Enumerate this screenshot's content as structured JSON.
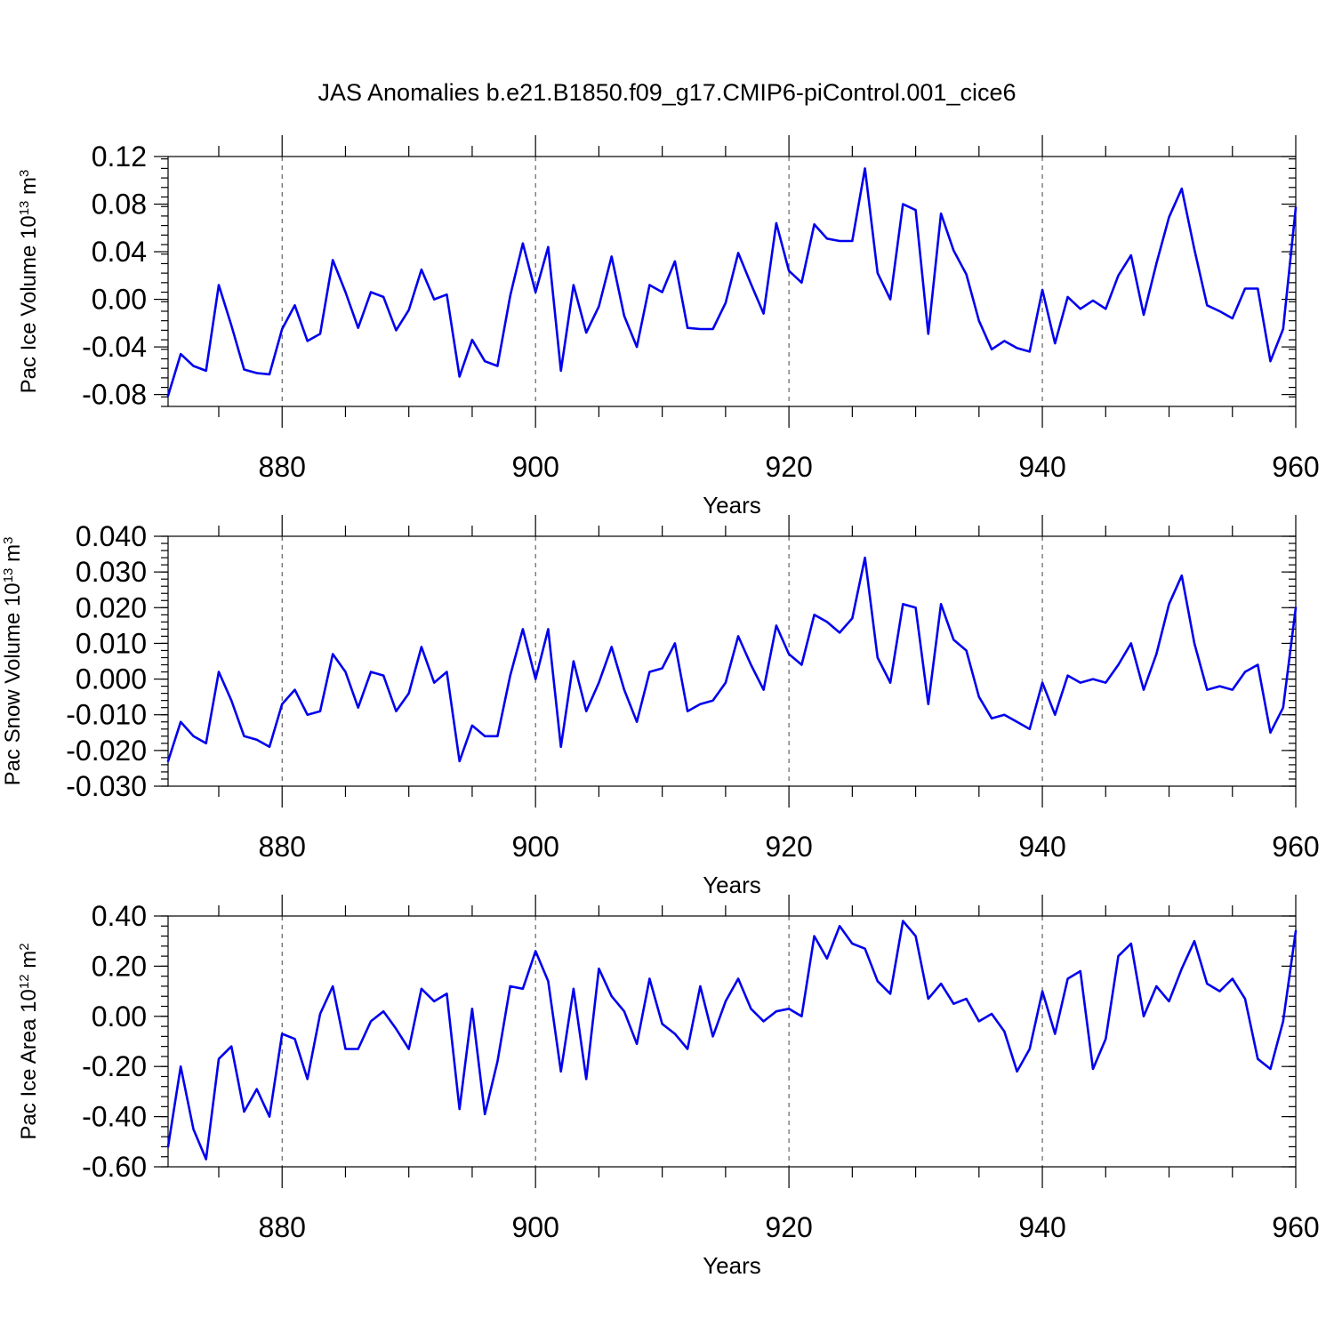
{
  "title": "JAS Anomalies b.e21.B1850.f09_g17.CMIP6-piControl.001_cice6",
  "colors": {
    "series": "#0000ee",
    "grid": "#444444",
    "axis": "#000000"
  },
  "chart_data": [
    {
      "type": "line",
      "xlabel": "Years",
      "ylabel": {
        "main": "Pac Ice Volume 10",
        "exp": "13",
        "unit": " m",
        "unit_exp": "3"
      },
      "xlim": [
        871,
        960
      ],
      "ylim": [
        -0.09,
        0.12
      ],
      "xticks": [
        880,
        900,
        920,
        940,
        960
      ],
      "xtick_labels": [
        "880",
        "900",
        "920",
        "940",
        "960"
      ],
      "yticks": [
        -0.08,
        -0.04,
        0.0,
        0.04,
        0.08,
        0.12
      ],
      "ytick_labels": [
        "-0.08",
        "-0.04",
        "0.00",
        "0.04",
        "0.08",
        "0.12"
      ],
      "x_start": 871,
      "values": [
        -0.081,
        -0.046,
        -0.056,
        -0.06,
        0.012,
        -0.022,
        -0.059,
        -0.062,
        -0.063,
        -0.025,
        -0.005,
        -0.035,
        -0.029,
        0.033,
        0.006,
        -0.024,
        0.006,
        0.002,
        -0.026,
        -0.009,
        0.025,
        0.0,
        0.004,
        -0.065,
        -0.034,
        -0.052,
        -0.056,
        0.003,
        0.047,
        0.006,
        0.044,
        -0.06,
        0.012,
        -0.028,
        -0.006,
        0.036,
        -0.014,
        -0.04,
        0.012,
        0.006,
        0.032,
        -0.024,
        -0.025,
        -0.025,
        -0.003,
        0.039,
        0.013,
        -0.012,
        0.064,
        0.024,
        0.014,
        0.063,
        0.051,
        0.049,
        0.049,
        0.11,
        0.022,
        0.0,
        0.08,
        0.075,
        -0.029,
        0.072,
        0.041,
        0.021,
        -0.018,
        -0.042,
        -0.035,
        -0.041,
        -0.044,
        0.008,
        -0.037,
        0.002,
        -0.008,
        -0.001,
        -0.008,
        0.02,
        0.037,
        -0.013,
        0.03,
        0.069,
        0.093,
        0.042,
        -0.005,
        -0.01,
        -0.016,
        0.009,
        0.009,
        -0.052,
        -0.025,
        0.077
      ]
    },
    {
      "type": "line",
      "xlabel": "Years",
      "ylabel": {
        "main": "Pac Snow Volume 10",
        "exp": "13",
        "unit": " m",
        "unit_exp": "3"
      },
      "xlim": [
        871,
        960
      ],
      "ylim": [
        -0.03,
        0.04
      ],
      "xticks": [
        880,
        900,
        920,
        940,
        960
      ],
      "xtick_labels": [
        "880",
        "900",
        "920",
        "940",
        "960"
      ],
      "yticks": [
        -0.03,
        -0.02,
        -0.01,
        0.0,
        0.01,
        0.02,
        0.03,
        0.04
      ],
      "ytick_labels": [
        "-0.030",
        "-0.020",
        "-0.010",
        "0.000",
        "0.010",
        "0.020",
        "0.030",
        "0.040"
      ],
      "x_start": 871,
      "values": [
        -0.023,
        -0.012,
        -0.016,
        -0.018,
        0.002,
        -0.006,
        -0.016,
        -0.017,
        -0.019,
        -0.007,
        -0.003,
        -0.01,
        -0.009,
        0.007,
        0.002,
        -0.008,
        0.002,
        0.001,
        -0.009,
        -0.004,
        0.009,
        -0.001,
        0.002,
        -0.023,
        -0.013,
        -0.016,
        -0.016,
        0.001,
        0.014,
        0.0,
        0.014,
        -0.019,
        0.005,
        -0.009,
        -0.001,
        0.009,
        -0.003,
        -0.012,
        0.002,
        0.003,
        0.01,
        -0.009,
        -0.007,
        -0.006,
        -0.001,
        0.012,
        0.004,
        -0.003,
        0.015,
        0.007,
        0.004,
        0.018,
        0.016,
        0.013,
        0.017,
        0.034,
        0.006,
        -0.001,
        0.021,
        0.02,
        -0.007,
        0.021,
        0.011,
        0.008,
        -0.005,
        -0.011,
        -0.01,
        -0.012,
        -0.014,
        -0.001,
        -0.01,
        0.001,
        -0.001,
        0.0,
        -0.001,
        0.004,
        0.01,
        -0.003,
        0.007,
        0.021,
        0.029,
        0.01,
        -0.003,
        -0.002,
        -0.003,
        0.002,
        0.004,
        -0.015,
        -0.008,
        0.02
      ]
    },
    {
      "type": "line",
      "xlabel": "Years",
      "ylabel": {
        "main": "Pac Ice Area 10",
        "exp": "12",
        "unit": " m",
        "unit_exp": "2"
      },
      "xlim": [
        871,
        960
      ],
      "ylim": [
        -0.6,
        0.4
      ],
      "xticks": [
        880,
        900,
        920,
        940,
        960
      ],
      "xtick_labels": [
        "880",
        "900",
        "920",
        "940",
        "960"
      ],
      "yticks": [
        -0.6,
        -0.4,
        -0.2,
        0.0,
        0.2,
        0.4
      ],
      "ytick_labels": [
        "-0.60",
        "-0.40",
        "-0.20",
        "0.00",
        "0.20",
        "0.40"
      ],
      "x_start": 871,
      "values": [
        -0.52,
        -0.2,
        -0.45,
        -0.57,
        -0.17,
        -0.12,
        -0.38,
        -0.29,
        -0.4,
        -0.07,
        -0.09,
        -0.25,
        0.01,
        0.12,
        -0.13,
        -0.13,
        -0.02,
        0.02,
        -0.05,
        -0.13,
        0.11,
        0.06,
        0.09,
        -0.37,
        0.03,
        -0.39,
        -0.18,
        0.12,
        0.11,
        0.26,
        0.14,
        -0.22,
        0.11,
        -0.25,
        0.19,
        0.08,
        0.02,
        -0.11,
        0.15,
        -0.03,
        -0.07,
        -0.13,
        0.12,
        -0.08,
        0.06,
        0.15,
        0.03,
        -0.02,
        0.02,
        0.03,
        0.0,
        0.32,
        0.23,
        0.36,
        0.29,
        0.27,
        0.14,
        0.09,
        0.38,
        0.32,
        0.07,
        0.13,
        0.05,
        0.07,
        -0.02,
        0.01,
        -0.06,
        -0.22,
        -0.13,
        0.1,
        -0.07,
        0.15,
        0.18,
        -0.21,
        -0.09,
        0.24,
        0.29,
        0.0,
        0.12,
        0.06,
        0.19,
        0.3,
        0.13,
        0.1,
        0.15,
        0.07,
        -0.17,
        -0.21,
        -0.02,
        0.34
      ]
    }
  ]
}
